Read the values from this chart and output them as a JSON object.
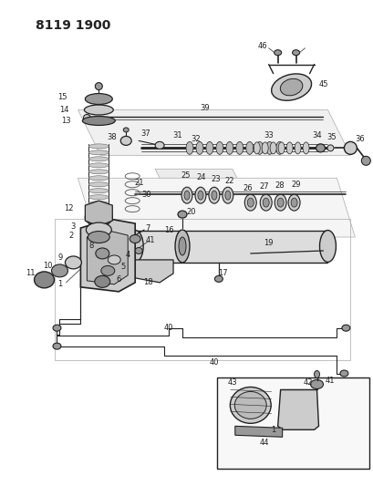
{
  "title": "8119 1900",
  "background_color": "#ffffff",
  "figsize": [
    4.1,
    5.33
  ],
  "dpi": 100,
  "title_fontsize": 10,
  "title_fontweight": "bold",
  "label_fontsize": 6.0,
  "dark": "#222222",
  "gray": "#666666",
  "light_gray": "#cccccc",
  "mid_gray": "#999999"
}
